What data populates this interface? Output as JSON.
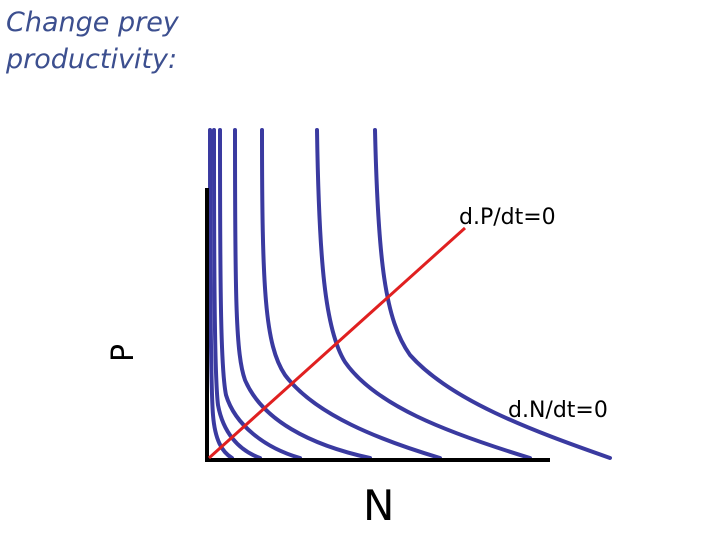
{
  "title": {
    "line1": "Change prey",
    "line2": "productivity:"
  },
  "axes": {
    "y_label": "P",
    "x_label": "N"
  },
  "isoclines": {
    "predator_label": "d.P/dt=0",
    "prey_label": "d.N/dt=0"
  },
  "colors": {
    "title": "#3c4f8f",
    "prey_isoclines": "#3a3aa0",
    "predator_isocline": "#e02020",
    "axes": "#000000"
  }
}
